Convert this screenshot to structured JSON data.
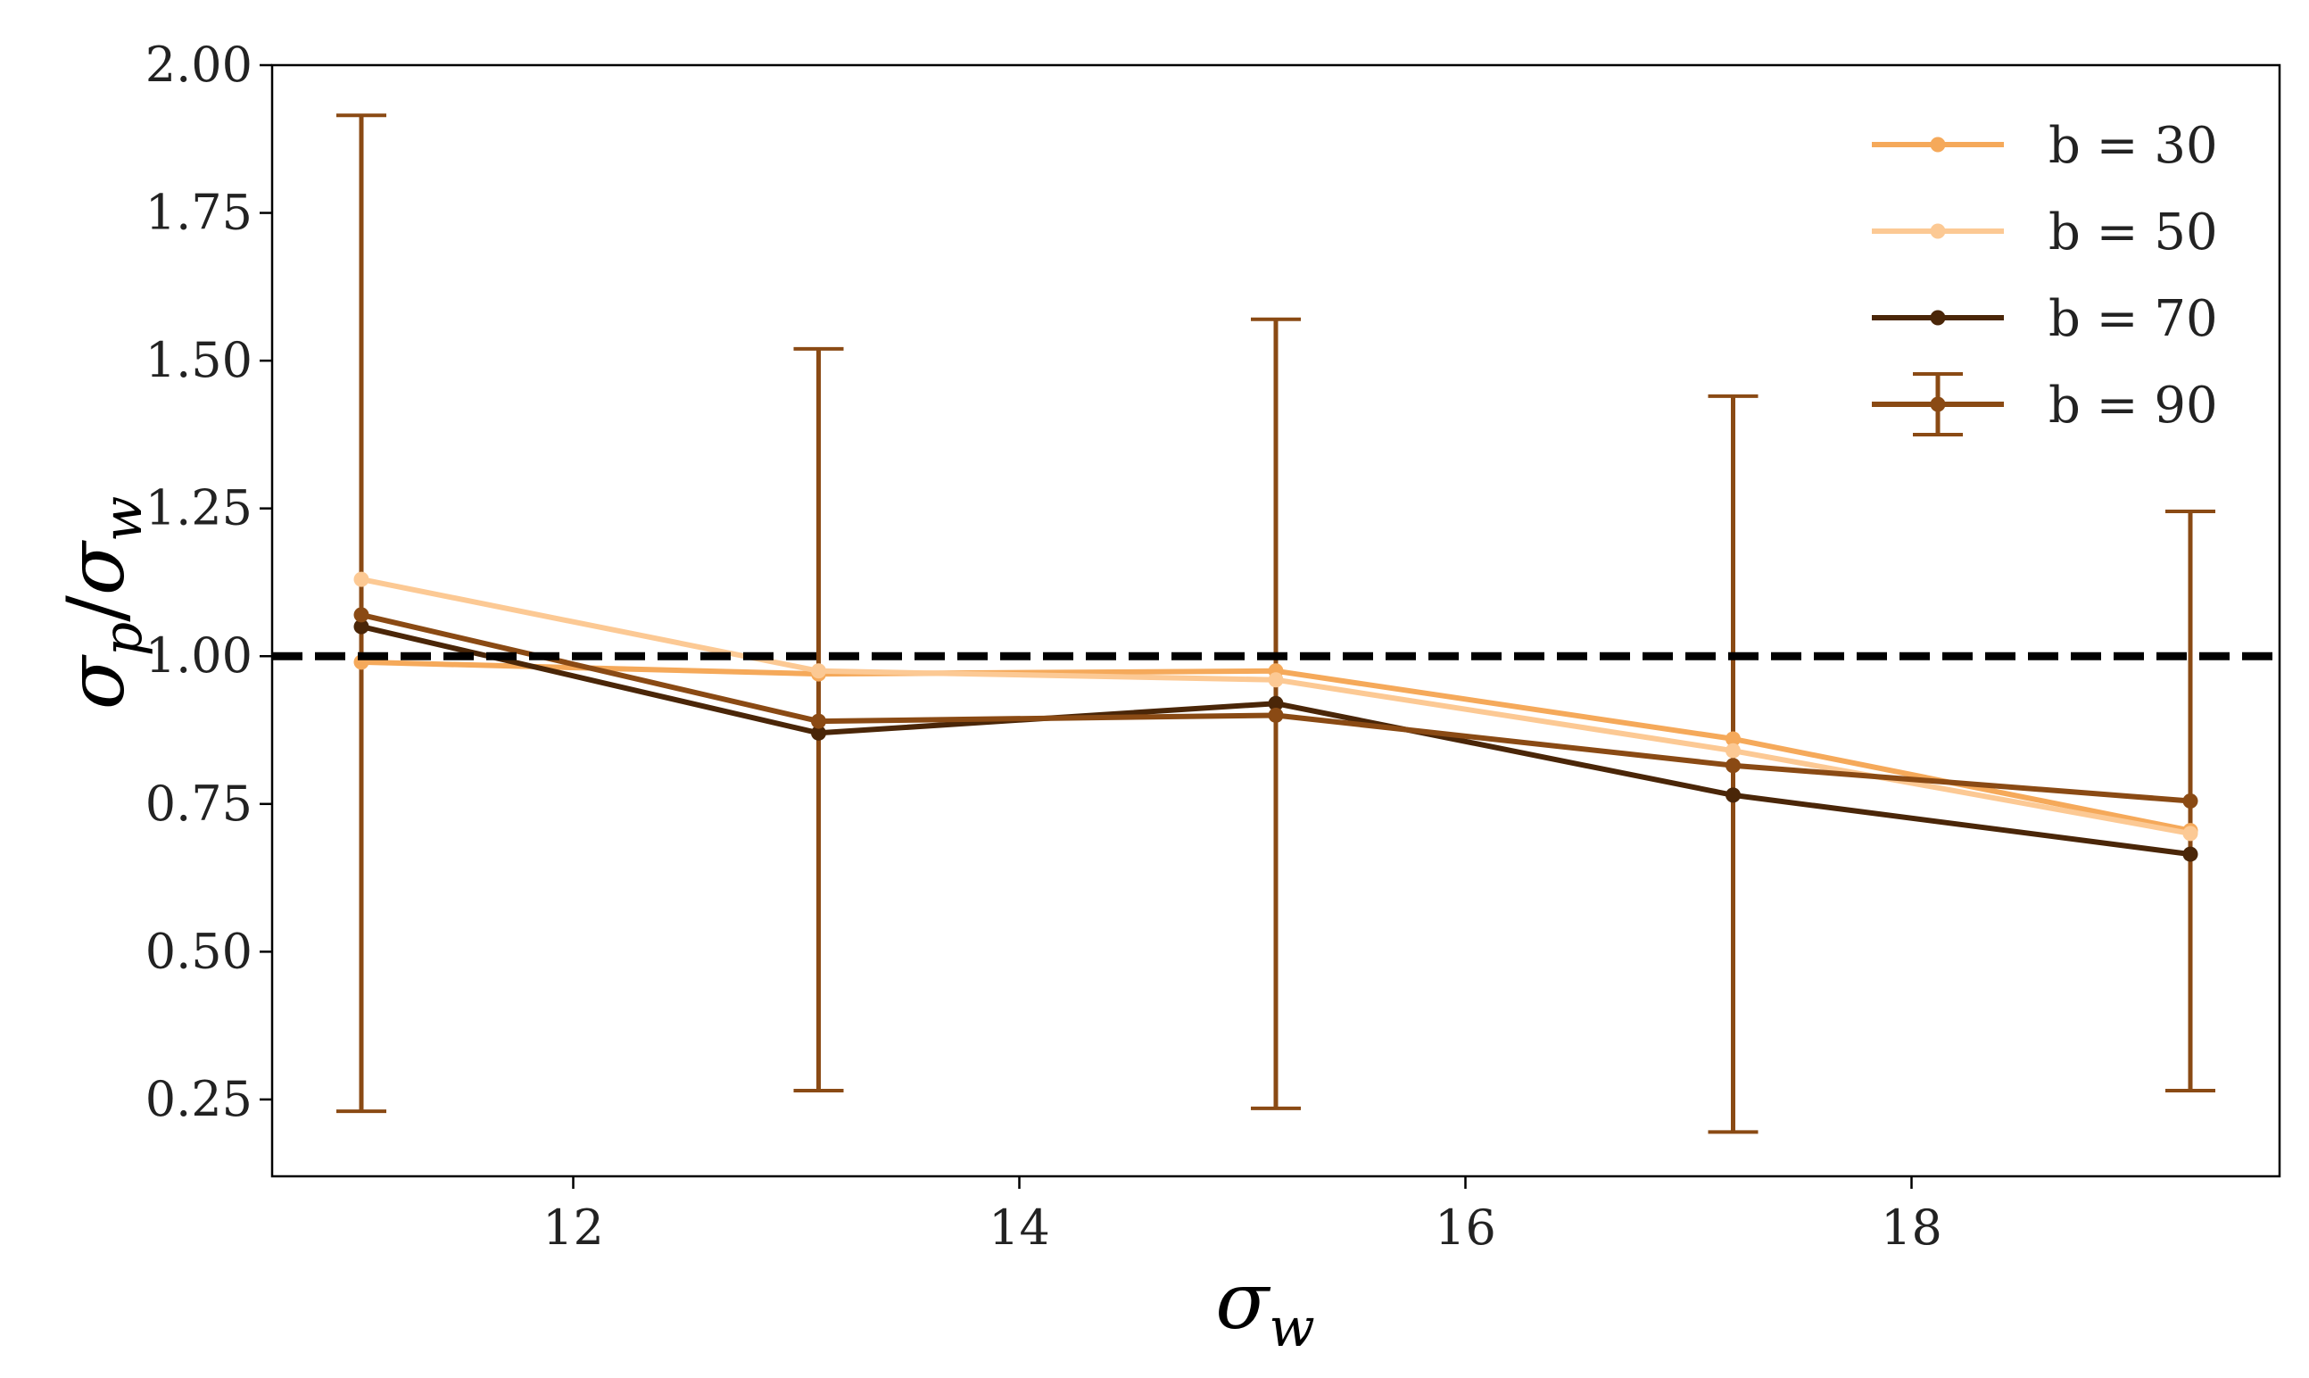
{
  "chart_data": {
    "type": "line",
    "title": "",
    "xlabel": "σ_w",
    "ylabel": "σ_p/σ_w",
    "xlabel_parts": {
      "main": "σ",
      "sub": "w"
    },
    "ylabel_parts": {
      "main1": "σ",
      "sub1": "p",
      "slash": "/",
      "main2": "σ",
      "sub2": "w"
    },
    "xlim": [
      10.65,
      19.65
    ],
    "ylim": [
      0.12,
      2.0
    ],
    "xticks": [
      12,
      14,
      16,
      18
    ],
    "xtick_labels": [
      "12",
      "14",
      "16",
      "18"
    ],
    "yticks": [
      0.25,
      0.5,
      0.75,
      1.0,
      1.25,
      1.5,
      1.75,
      2.0
    ],
    "ytick_labels": [
      "0.25",
      "0.50",
      "0.75",
      "1.00",
      "1.25",
      "1.50",
      "1.75",
      "2.00"
    ],
    "x": [
      11.05,
      13.1,
      15.15,
      17.2,
      19.25
    ],
    "series": [
      {
        "name": "b = 30",
        "color": "#f5a95a",
        "values": [
          0.99,
          0.97,
          0.975,
          0.86,
          0.705
        ]
      },
      {
        "name": "b = 50",
        "color": "#fcc994",
        "values": [
          1.13,
          0.975,
          0.96,
          0.84,
          0.7
        ]
      },
      {
        "name": "b = 70",
        "color": "#4a2608",
        "values": [
          1.05,
          0.87,
          0.92,
          0.765,
          0.665
        ]
      },
      {
        "name": "b = 90",
        "color": "#8a4a14",
        "values": [
          1.07,
          0.89,
          0.9,
          0.815,
          0.755
        ],
        "error": {
          "lower": [
            0.23,
            0.265,
            0.235,
            0.195,
            0.265
          ],
          "upper": [
            1.915,
            1.52,
            1.57,
            1.44,
            1.245
          ]
        }
      }
    ],
    "reference_line": {
      "y": 1.0,
      "style": "dashed",
      "color": "#000000"
    },
    "grid": false,
    "legend_position": "top-right"
  }
}
